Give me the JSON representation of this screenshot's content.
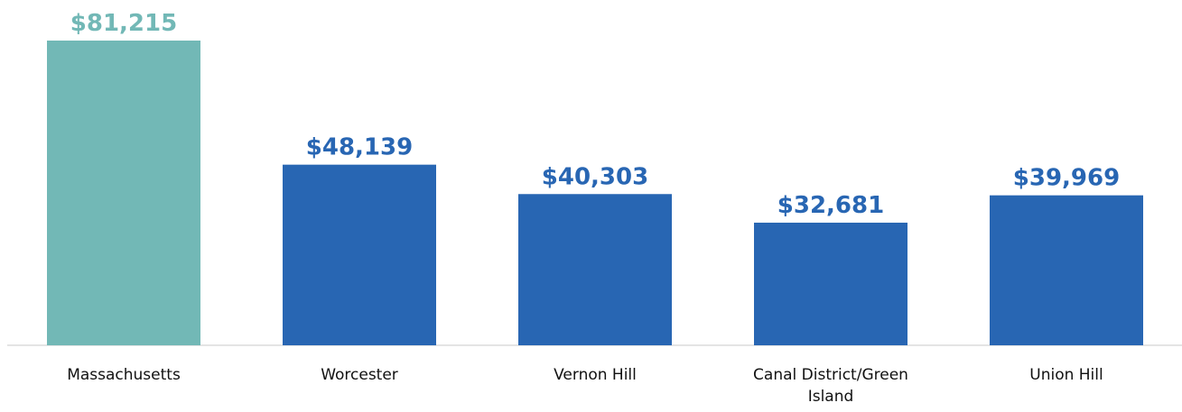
{
  "chart_data": {
    "type": "bar",
    "categories": [
      "Massachusetts",
      "Worcester",
      "Vernon Hill",
      "Canal District/Green Island",
      "Union Hill"
    ],
    "values": [
      81215,
      48139,
      40303,
      32681,
      39969
    ],
    "value_labels": [
      "$81,215",
      "$48,139",
      "$40,303",
      "$32,681",
      "$39,969"
    ],
    "colors": [
      "#72b8b6",
      "#2866b3",
      "#2866b3",
      "#2866b3",
      "#2866b3"
    ]
  }
}
